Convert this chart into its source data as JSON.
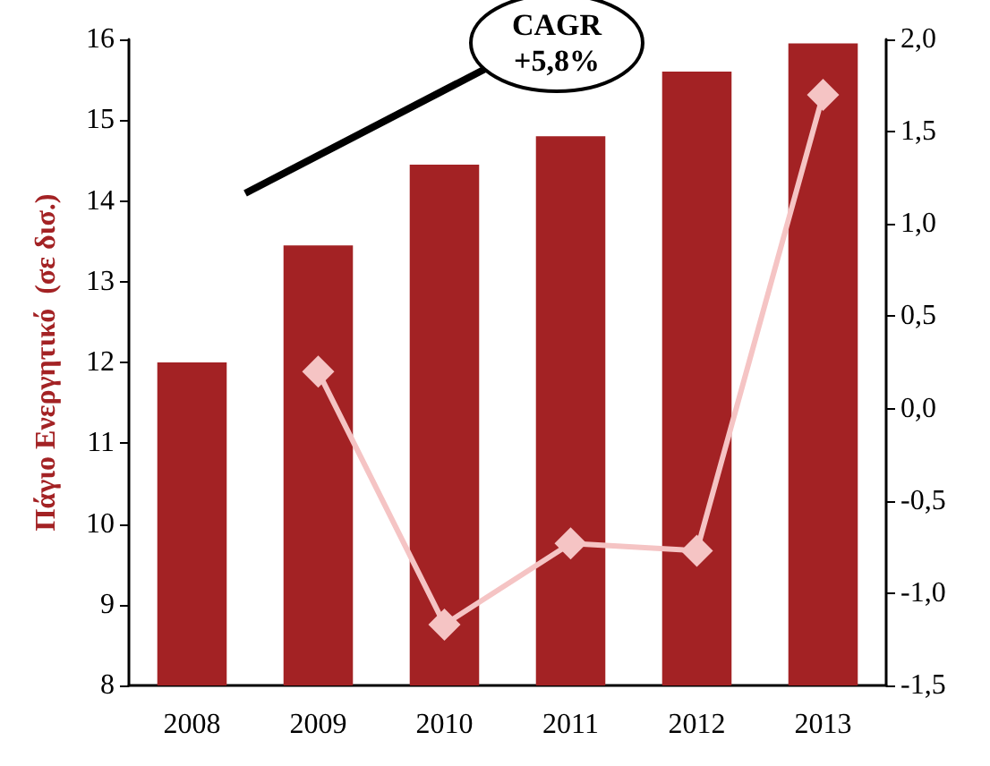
{
  "chart_data": {
    "type": "bar",
    "ylabel": "Πάγιο Ενεργητικό  (σε δισ.)",
    "categories": [
      "2008",
      "2009",
      "2010",
      "2011",
      "2012",
      "2013"
    ],
    "series": [
      {
        "color": "#a32224",
        "values": [
          12.0,
          13.45,
          14.45,
          14.8,
          15.6,
          15.95
        ]
      },
      {
        "type": "line",
        "axis": "y2",
        "color": "#f5c4c4",
        "values": [
          null,
          0.2,
          -1.17,
          -0.73,
          -0.77,
          1.7
        ]
      }
    ],
    "ylim": [
      8,
      16
    ],
    "yticks": [
      8,
      9,
      10,
      11,
      12,
      13,
      14,
      15,
      16
    ],
    "y2lim": [
      -1.5,
      2.0
    ],
    "y2ticks": [
      {
        "value": -1.5,
        "label": "-1,5"
      },
      {
        "value": -1.0,
        "label": "-1,0"
      },
      {
        "value": -0.5,
        "label": "-0,5"
      },
      {
        "value": 0,
        "label": "0,0"
      },
      {
        "value": 0.5,
        "label": "0,5"
      },
      {
        "value": 1.0,
        "label": "1,0"
      },
      {
        "value": 1.5,
        "label": "1,5"
      },
      {
        "value": 2.0,
        "label": "2,0"
      }
    ],
    "marker": "diamond",
    "grid": false,
    "annotations": [
      "CAGR\n+5,8%"
    ]
  }
}
